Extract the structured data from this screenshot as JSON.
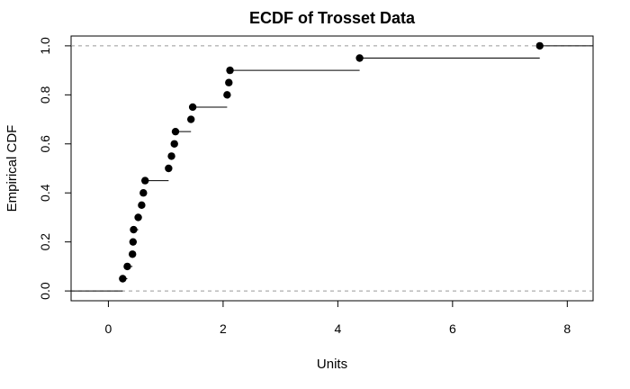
{
  "chart_data": {
    "type": "ecdf",
    "title": "ECDF of Trosset Data",
    "xlabel": "Units",
    "ylabel": "Empirical CDF",
    "xlim": [
      -0.65,
      8.45
    ],
    "ylim": [
      -0.04,
      1.04
    ],
    "xticks": [
      0,
      2,
      4,
      6,
      8
    ],
    "xtick_labels": [
      "0",
      "2",
      "4",
      "6",
      "8"
    ],
    "yticks": [
      0.0,
      0.2,
      0.4,
      0.6,
      0.8,
      1.0
    ],
    "ytick_labels": [
      "0.0",
      "0.2",
      "0.4",
      "0.6",
      "0.8",
      "1.0"
    ],
    "reference_lines": [
      0,
      1
    ],
    "colors": {
      "points": "#000000",
      "steps": "#000000",
      "reference": "#999999"
    },
    "points": [
      {
        "x": 0.25,
        "y": 0.05
      },
      {
        "x": 0.33,
        "y": 0.1
      },
      {
        "x": 0.42,
        "y": 0.15
      },
      {
        "x": 0.43,
        "y": 0.2
      },
      {
        "x": 0.44,
        "y": 0.25
      },
      {
        "x": 0.52,
        "y": 0.3
      },
      {
        "x": 0.58,
        "y": 0.35
      },
      {
        "x": 0.61,
        "y": 0.4
      },
      {
        "x": 0.64,
        "y": 0.45
      },
      {
        "x": 1.05,
        "y": 0.5
      },
      {
        "x": 1.1,
        "y": 0.55
      },
      {
        "x": 1.15,
        "y": 0.6
      },
      {
        "x": 1.17,
        "y": 0.65
      },
      {
        "x": 1.44,
        "y": 0.7
      },
      {
        "x": 1.47,
        "y": 0.75
      },
      {
        "x": 2.07,
        "y": 0.8
      },
      {
        "x": 2.1,
        "y": 0.85
      },
      {
        "x": 2.12,
        "y": 0.9
      },
      {
        "x": 4.38,
        "y": 0.95
      },
      {
        "x": 7.52,
        "y": 1.0
      }
    ]
  }
}
